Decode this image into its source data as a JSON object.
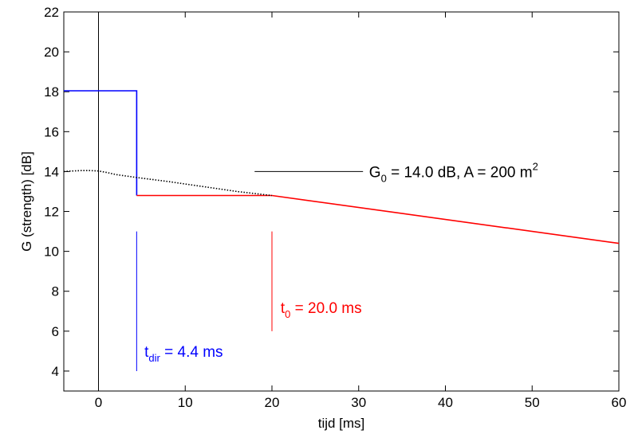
{
  "chart_data": {
    "type": "line",
    "xlabel": "tijd  [ms]",
    "ylabel": "G (strength) [dB]",
    "xlim": [
      -4,
      60
    ],
    "ylim": [
      3,
      22
    ],
    "xticks": [
      "0",
      "10",
      "20",
      "30",
      "40",
      "50",
      "60"
    ],
    "yticks": [
      "4",
      "6",
      "8",
      "10",
      "12",
      "14",
      "16",
      "18",
      "20",
      "22"
    ],
    "grid": false,
    "series": [
      {
        "color": "#0000ff",
        "style": "solid",
        "x": [
          -4,
          4.4,
          4.4
        ],
        "y": [
          18.05,
          18.05,
          12.8
        ]
      },
      {
        "color": "#ff0000",
        "style": "solid",
        "x": [
          4.4,
          20,
          60
        ],
        "y": [
          12.8,
          12.8,
          10.4
        ]
      },
      {
        "color": "#000000",
        "style": "dotted",
        "x": [
          -4,
          -3,
          -2,
          -1,
          0,
          1,
          2,
          4.4,
          8,
          12,
          16,
          20
        ],
        "y": [
          14.0,
          14.03,
          14.05,
          14.05,
          14.03,
          13.95,
          13.85,
          13.7,
          13.5,
          13.25,
          13.0,
          12.8
        ]
      }
    ],
    "vertical_lines": [
      {
        "x": 0,
        "y": [
          3,
          22
        ],
        "color": "#000000"
      },
      {
        "x": 4.4,
        "y": [
          4,
          11
        ],
        "color": "#0000ff"
      },
      {
        "x": 20,
        "y": [
          6,
          11
        ],
        "color": "#ff0000"
      }
    ],
    "leader_line": {
      "x": [
        18,
        30.5
      ],
      "y": [
        14,
        14
      ]
    },
    "annotations": {
      "g0": {
        "main": "G",
        "sub": "0",
        "rest": " = 14.0 dB,   A = 200 m",
        "sup": "2",
        "x": 31.2,
        "y": 14.0,
        "color": "#000000"
      },
      "t0": {
        "main": "t",
        "sub": "0",
        "rest": " = 20.0 ms",
        "x": 21.0,
        "y": 7.2,
        "color": "#ff0000"
      },
      "tdir": {
        "main": "t",
        "sub": "dir",
        "rest": " =  4.4 ms",
        "x": 5.3,
        "y": 5.0,
        "color": "#0000ff"
      }
    }
  }
}
